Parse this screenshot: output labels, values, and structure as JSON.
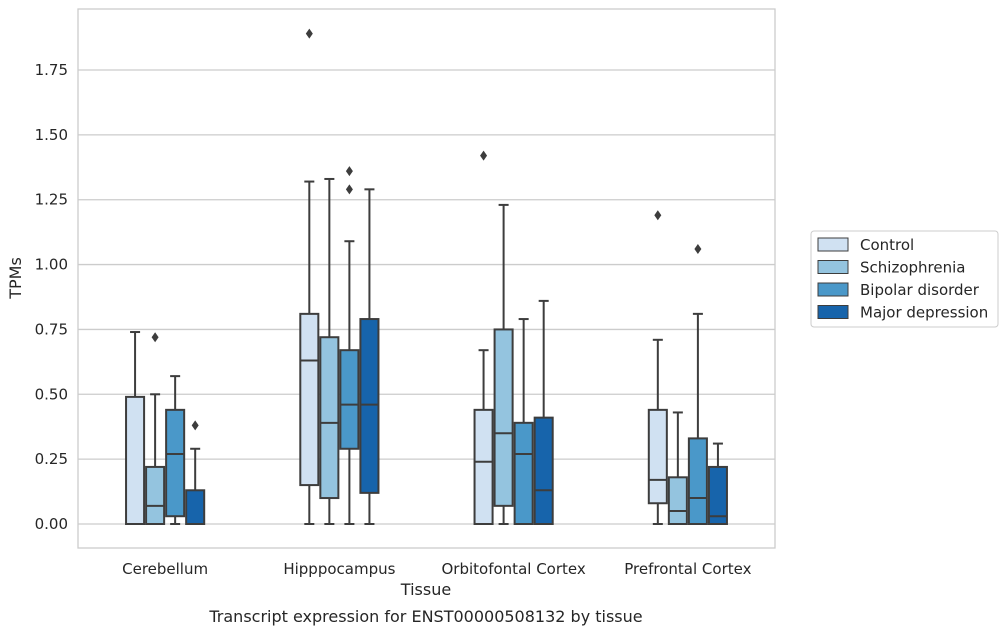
{
  "chart_data": {
    "type": "box",
    "xlabel": "Tissue",
    "ylabel": "TPMs",
    "caption": "Transcript expression for ENST00000508132 by tissue",
    "categories": [
      "Cerebellum",
      "Hipppocampus",
      "Orbitofontal Cortex",
      "Prefrontal Cortex"
    ],
    "ylim": [
      -0.09,
      1.98
    ],
    "yticks": [
      "0.00",
      "0.25",
      "0.50",
      "0.75",
      "1.00",
      "1.25",
      "1.50",
      "1.75"
    ],
    "grid": "horizontal",
    "legend_position": "right",
    "series": [
      {
        "name": "Control",
        "color": "#d0e1f2",
        "boxes": [
          {
            "min": 0.0,
            "q1": 0.0,
            "median": 0.0,
            "q3": 0.49,
            "max": 0.74,
            "outliers": []
          },
          {
            "min": 0.0,
            "q1": 0.15,
            "median": 0.63,
            "q3": 0.81,
            "max": 1.32,
            "outliers": [
              1.89
            ]
          },
          {
            "min": 0.0,
            "q1": 0.0,
            "median": 0.24,
            "q3": 0.44,
            "max": 0.67,
            "outliers": [
              1.42
            ]
          },
          {
            "min": 0.0,
            "q1": 0.08,
            "median": 0.17,
            "q3": 0.44,
            "max": 0.71,
            "outliers": [
              1.19
            ]
          }
        ]
      },
      {
        "name": "Schizophrenia",
        "color": "#94c4df",
        "boxes": [
          {
            "min": 0.0,
            "q1": 0.0,
            "median": 0.07,
            "q3": 0.22,
            "max": 0.5,
            "outliers": [
              0.72
            ]
          },
          {
            "min": 0.0,
            "q1": 0.1,
            "median": 0.39,
            "q3": 0.72,
            "max": 1.33,
            "outliers": []
          },
          {
            "min": 0.0,
            "q1": 0.07,
            "median": 0.35,
            "q3": 0.75,
            "max": 1.23,
            "outliers": []
          },
          {
            "min": 0.0,
            "q1": 0.0,
            "median": 0.05,
            "q3": 0.18,
            "max": 0.43,
            "outliers": []
          }
        ]
      },
      {
        "name": "Bipolar disorder",
        "color": "#4a98c9",
        "boxes": [
          {
            "min": 0.0,
            "q1": 0.03,
            "median": 0.27,
            "q3": 0.44,
            "max": 0.57,
            "outliers": []
          },
          {
            "min": 0.0,
            "q1": 0.29,
            "median": 0.46,
            "q3": 0.67,
            "max": 1.09,
            "outliers": [
              1.29,
              1.36
            ]
          },
          {
            "min": 0.0,
            "q1": 0.0,
            "median": 0.27,
            "q3": 0.39,
            "max": 0.79,
            "outliers": []
          },
          {
            "min": 0.0,
            "q1": 0.0,
            "median": 0.1,
            "q3": 0.33,
            "max": 0.81,
            "outliers": [
              1.06
            ]
          }
        ]
      },
      {
        "name": "Major depression",
        "color": "#1764ab",
        "boxes": [
          {
            "min": 0.0,
            "q1": 0.0,
            "median": 0.0,
            "q3": 0.13,
            "max": 0.29,
            "outliers": [
              0.38
            ]
          },
          {
            "min": 0.0,
            "q1": 0.12,
            "median": 0.46,
            "q3": 0.79,
            "max": 1.29,
            "outliers": []
          },
          {
            "min": 0.0,
            "q1": 0.0,
            "median": 0.13,
            "q3": 0.41,
            "max": 0.86,
            "outliers": []
          },
          {
            "min": 0.0,
            "q1": 0.0,
            "median": 0.03,
            "q3": 0.22,
            "max": 0.31,
            "outliers": []
          }
        ]
      }
    ]
  }
}
